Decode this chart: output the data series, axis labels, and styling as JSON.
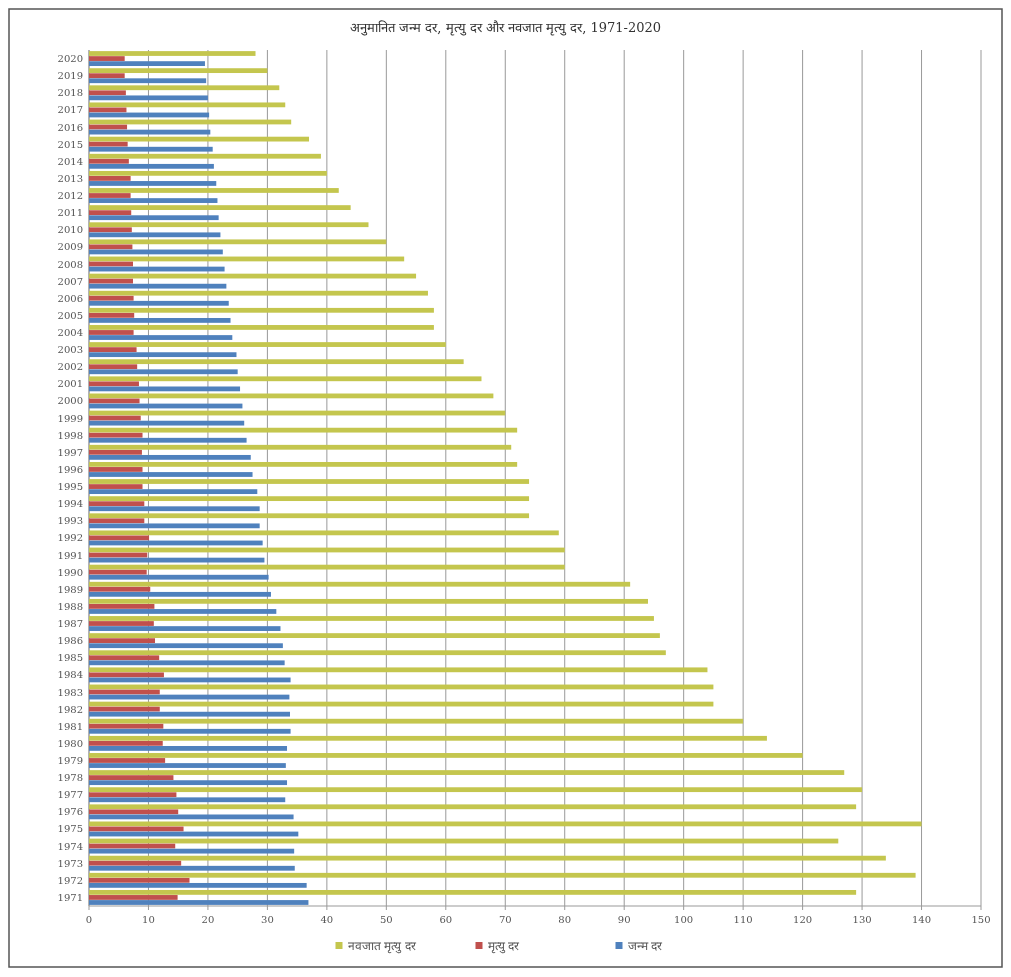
{
  "chart_data": {
    "type": "bar",
    "orientation": "horizontal",
    "title": "अनुमानित जन्म दर, मृत्यु दर और नवजात मृत्यु दर, 1971-2020",
    "categories": [
      "2020",
      "2019",
      "2018",
      "2017",
      "2016",
      "2015",
      "2014",
      "2013",
      "2012",
      "2011",
      "2010",
      "2009",
      "2008",
      "2007",
      "2006",
      "2005",
      "2004",
      "2003",
      "2002",
      "2001",
      "2000",
      "1999",
      "1998",
      "1997",
      "1996",
      "1995",
      "1994",
      "1993",
      "1992",
      "1991",
      "1990",
      "1989",
      "1988",
      "1987",
      "1986",
      "1985",
      "1984",
      "1983",
      "1982",
      "1981",
      "1980",
      "1979",
      "1978",
      "1977",
      "1976",
      "1975",
      "1974",
      "1973",
      "1972",
      "1971"
    ],
    "series": [
      {
        "name": "नवजात मृत्यु दर",
        "color": "#c4c64e",
        "values": [
          28,
          30,
          32,
          33,
          34,
          37,
          39,
          40,
          42,
          44,
          47,
          50,
          53,
          55,
          57,
          58,
          58,
          60,
          63,
          66,
          68,
          70,
          72,
          71,
          72,
          74,
          74,
          74,
          79,
          80,
          80,
          91,
          94,
          95,
          96,
          97,
          104,
          105,
          105,
          110,
          114,
          120,
          127,
          130,
          129,
          140,
          126,
          134,
          139,
          129
        ]
      },
      {
        "name": "मृत्यु दर",
        "color": "#c0504d",
        "values": [
          6.0,
          6.0,
          6.2,
          6.3,
          6.4,
          6.5,
          6.7,
          7.0,
          7.0,
          7.1,
          7.2,
          7.3,
          7.4,
          7.4,
          7.5,
          7.6,
          7.5,
          8.0,
          8.1,
          8.4,
          8.5,
          8.7,
          9.0,
          8.9,
          9.0,
          9.0,
          9.3,
          9.3,
          10.1,
          9.8,
          9.7,
          10.3,
          11.0,
          10.9,
          11.1,
          11.8,
          12.6,
          11.9,
          11.9,
          12.5,
          12.4,
          12.8,
          14.2,
          14.7,
          15.0,
          15.9,
          14.5,
          15.5,
          16.9,
          14.9
        ]
      },
      {
        "name": "जन्म दर",
        "color": "#4f81bd",
        "values": [
          19.5,
          19.7,
          20.0,
          20.2,
          20.4,
          20.8,
          21.0,
          21.4,
          21.6,
          21.8,
          22.1,
          22.5,
          22.8,
          23.1,
          23.5,
          23.8,
          24.1,
          24.8,
          25.0,
          25.4,
          25.8,
          26.1,
          26.5,
          27.2,
          27.5,
          28.3,
          28.7,
          28.7,
          29.2,
          29.5,
          30.2,
          30.6,
          31.5,
          32.2,
          32.6,
          32.9,
          33.9,
          33.7,
          33.8,
          33.9,
          33.3,
          33.1,
          33.3,
          33.0,
          34.4,
          35.2,
          34.5,
          34.6,
          36.6,
          36.9
        ]
      }
    ],
    "xlim": [
      0,
      150
    ],
    "xticks": [
      0,
      10,
      20,
      30,
      40,
      50,
      60,
      70,
      80,
      90,
      100,
      110,
      120,
      130,
      140,
      150
    ],
    "grid": "x",
    "legend": "bottom"
  }
}
